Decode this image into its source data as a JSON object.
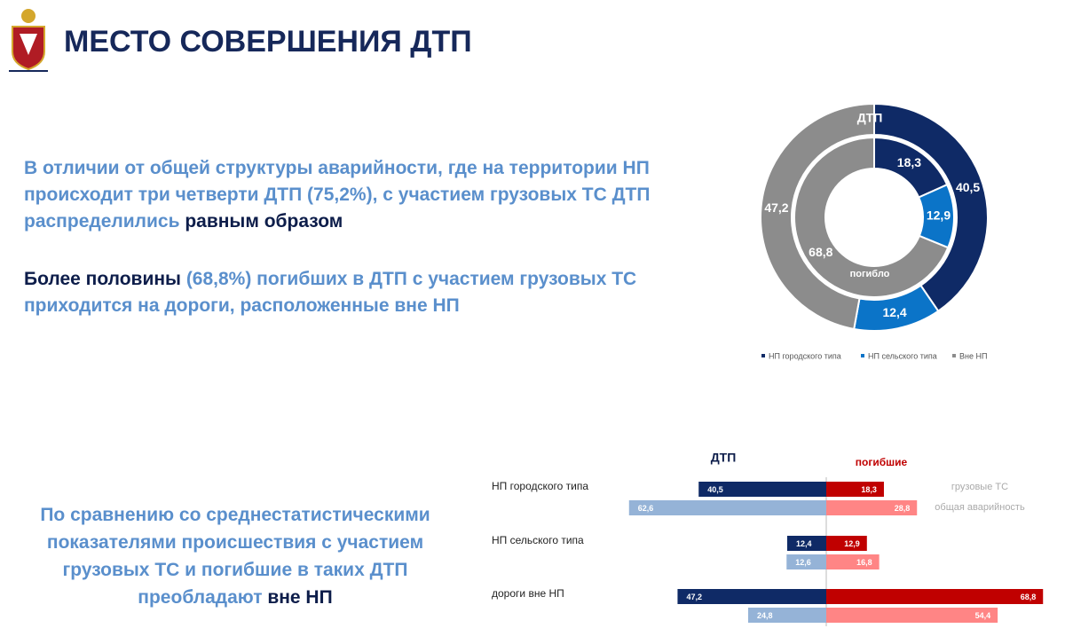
{
  "header": {
    "title": "МЕСТО СОВЕРШЕНИЯ ДТП"
  },
  "paragraphs": [
    [
      "В отличии от общей структуры аварийности, где на территории НП",
      "происходит три четверти ДТП (75,2%), с участием грузовых ТС ДТП",
      "распределились ",
      "равным образом"
    ],
    [
      "Более половины ",
      "(68,8%) погибших в ДТП с участием грузовых ТС",
      "приходится на дороги, расположенные вне НП"
    ],
    [
      "По сравнению со среднестатистическими",
      "показателями происшествия с участием",
      "грузовых ТС и погибшие в таких ДТП",
      "преобладают ",
      "вне НП"
    ]
  ],
  "chart_data": [
    {
      "type": "pie",
      "categories": [
        "НП городского типа",
        "НП сельского типа",
        "Вне НП"
      ],
      "colors": [
        "#0f2a66",
        "#0b74c8",
        "#8c8c8c"
      ],
      "rings": [
        {
          "name": "ДТП",
          "values": [
            40.5,
            12.4,
            47.2
          ],
          "value_labels": [
            "40,5",
            "12,4",
            "47,2"
          ]
        },
        {
          "name": "погибло",
          "values": [
            18.3,
            12.9,
            68.8
          ],
          "value_labels": [
            "18,3",
            "12,9",
            "68,8"
          ]
        }
      ]
    },
    {
      "type": "diverging-bar",
      "categories": [
        "НП городского типа",
        "НП сельского типа",
        "дороги вне НП"
      ],
      "series_names": [
        "грузовые ТС",
        "общая аварийность"
      ],
      "sides": [
        {
          "name": "ДТП",
          "colors": [
            "#0f2a66",
            "#95b3d7"
          ],
          "values": [
            [
              40.5,
              12.4,
              47.2
            ],
            [
              62.6,
              12.6,
              24.8
            ]
          ],
          "value_labels": [
            [
              "40,5",
              "12,4",
              "47,2"
            ],
            [
              "62,6",
              "12,6",
              "24,8"
            ]
          ]
        },
        {
          "name": "погибшие",
          "colors": [
            "#c00000",
            "#ff8585"
          ],
          "values": [
            [
              18.3,
              12.9,
              68.8
            ],
            [
              28.8,
              16.8,
              54.4
            ]
          ],
          "value_labels": [
            [
              "18,3",
              "12,9",
              "68,8"
            ],
            [
              "28,8",
              "16,8",
              "54,4"
            ]
          ]
        }
      ]
    }
  ]
}
